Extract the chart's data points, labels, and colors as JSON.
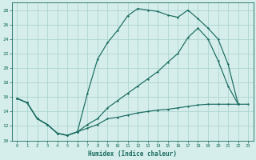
{
  "xlabel": "Humidex (Indice chaleur)",
  "bg_color": "#d5eeeb",
  "grid_color": "#aed4d0",
  "line_color": "#1a6b60",
  "xlim": [
    -0.5,
    23.5
  ],
  "ylim": [
    10,
    29
  ],
  "xticks": [
    0,
    1,
    2,
    3,
    4,
    5,
    6,
    7,
    8,
    9,
    10,
    11,
    12,
    13,
    14,
    15,
    16,
    17,
    18,
    19,
    20,
    21,
    22,
    23
  ],
  "yticks": [
    10,
    12,
    14,
    16,
    18,
    20,
    22,
    24,
    26,
    28
  ],
  "line1_x": [
    0,
    1,
    2,
    3,
    4,
    5,
    6,
    7,
    8,
    9,
    10,
    11,
    12,
    13,
    14,
    15,
    16,
    17,
    18,
    19,
    20,
    21,
    22,
    23
  ],
  "line1_y": [
    15.8,
    15.2,
    13.0,
    12.2,
    11.0,
    10.7,
    11.2,
    11.7,
    12.2,
    13.0,
    13.2,
    13.5,
    13.8,
    14.0,
    14.2,
    14.3,
    14.5,
    14.7,
    14.9,
    15.0,
    15.0,
    15.0,
    15.0,
    15.0
  ],
  "line2_x": [
    0,
    1,
    2,
    3,
    4,
    5,
    6,
    7,
    8,
    9,
    10,
    11,
    12,
    13,
    14,
    15,
    16,
    17,
    18,
    19,
    20,
    21,
    22
  ],
  "line2_y": [
    15.8,
    15.2,
    13.0,
    12.2,
    11.0,
    10.7,
    11.2,
    16.5,
    21.2,
    23.5,
    25.2,
    27.2,
    28.2,
    28.0,
    27.8,
    27.3,
    27.0,
    28.0,
    26.8,
    25.5,
    24.0,
    20.5,
    15.0
  ],
  "line3_x": [
    0,
    1,
    2,
    3,
    4,
    5,
    6,
    7,
    8,
    9,
    10,
    11,
    12,
    13,
    14,
    15,
    16,
    17,
    18,
    19,
    20,
    21,
    22
  ],
  "line3_y": [
    15.8,
    15.2,
    13.0,
    12.2,
    11.0,
    10.7,
    11.2,
    12.2,
    13.0,
    14.5,
    15.5,
    16.5,
    17.5,
    18.5,
    19.5,
    20.8,
    22.0,
    24.2,
    25.5,
    24.0,
    21.0,
    17.5,
    15.0
  ]
}
